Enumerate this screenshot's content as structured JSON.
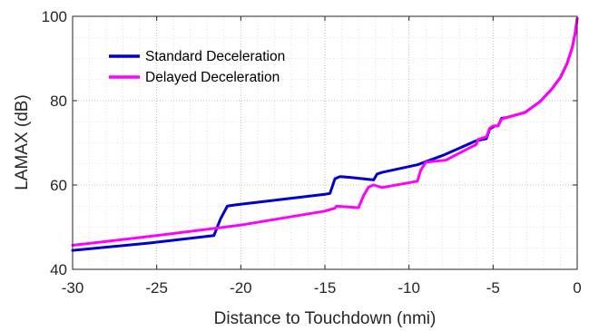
{
  "chart_data": {
    "type": "line",
    "xlabel": "Distance to Touchdown (nmi)",
    "ylabel": "LAMAX (dB)",
    "xlim": [
      -30,
      0
    ],
    "ylim": [
      40,
      100
    ],
    "xticks": [
      -30,
      -25,
      -20,
      -15,
      -10,
      -5,
      0
    ],
    "yticks": [
      40,
      60,
      80,
      100
    ],
    "grid": "dotted major and minor",
    "legend_position": "upper-left",
    "series": [
      {
        "name": "Standard Deceleration",
        "color": "#0000cc",
        "points": [
          [
            -30,
            44.5
          ],
          [
            -25.5,
            46.2
          ],
          [
            -21.6,
            48.0
          ],
          [
            -21.2,
            52.0
          ],
          [
            -20.8,
            55.0
          ],
          [
            -20.3,
            55.3
          ],
          [
            -15.0,
            57.8
          ],
          [
            -14.7,
            58.0
          ],
          [
            -14.4,
            61.5
          ],
          [
            -14.1,
            62.0
          ],
          [
            -13.5,
            61.8
          ],
          [
            -12.1,
            61.2
          ],
          [
            -11.9,
            62.6
          ],
          [
            -11.6,
            63.0
          ],
          [
            -9.5,
            64.8
          ],
          [
            -8.0,
            67.0
          ],
          [
            -6.0,
            70.5
          ],
          [
            -5.4,
            71.0
          ],
          [
            -5.2,
            73.3
          ],
          [
            -4.9,
            74.0
          ],
          [
            -4.7,
            74.0
          ],
          [
            -4.5,
            75.8
          ],
          [
            -4.2,
            76.0
          ],
          [
            -3.1,
            77.2
          ],
          [
            -2.2,
            79.8
          ],
          [
            -1.5,
            82.8
          ],
          [
            -1.0,
            85.5
          ],
          [
            -0.6,
            88.8
          ],
          [
            -0.3,
            92.5
          ],
          [
            -0.12,
            96.0
          ],
          [
            0,
            99.5
          ]
        ]
      },
      {
        "name": "Delayed Deceleration",
        "color": "#ff00ff",
        "points": [
          [
            -30,
            45.7
          ],
          [
            -25.0,
            48.0
          ],
          [
            -20.0,
            50.5
          ],
          [
            -15.0,
            53.8
          ],
          [
            -14.4,
            54.5
          ],
          [
            -14.3,
            55.0
          ],
          [
            -14.0,
            54.9
          ],
          [
            -13.0,
            54.6
          ],
          [
            -12.7,
            57.5
          ],
          [
            -12.4,
            59.5
          ],
          [
            -12.1,
            60.0
          ],
          [
            -11.6,
            59.4
          ],
          [
            -9.5,
            60.9
          ],
          [
            -9.3,
            63.5
          ],
          [
            -9.0,
            65.4
          ],
          [
            -7.8,
            65.9
          ],
          [
            -6.4,
            68.8
          ],
          [
            -6.0,
            69.6
          ],
          [
            -5.9,
            70.8
          ],
          [
            -5.4,
            71.4
          ],
          [
            -5.2,
            73.5
          ],
          [
            -5.0,
            74.0
          ],
          [
            -4.7,
            74.0
          ],
          [
            -4.5,
            75.6
          ],
          [
            -4.2,
            76.0
          ],
          [
            -3.1,
            77.2
          ],
          [
            -2.2,
            79.8
          ],
          [
            -1.5,
            82.8
          ],
          [
            -1.0,
            85.5
          ],
          [
            -0.6,
            88.8
          ],
          [
            -0.3,
            92.5
          ],
          [
            -0.12,
            96.0
          ],
          [
            0,
            99.5
          ]
        ]
      }
    ]
  }
}
